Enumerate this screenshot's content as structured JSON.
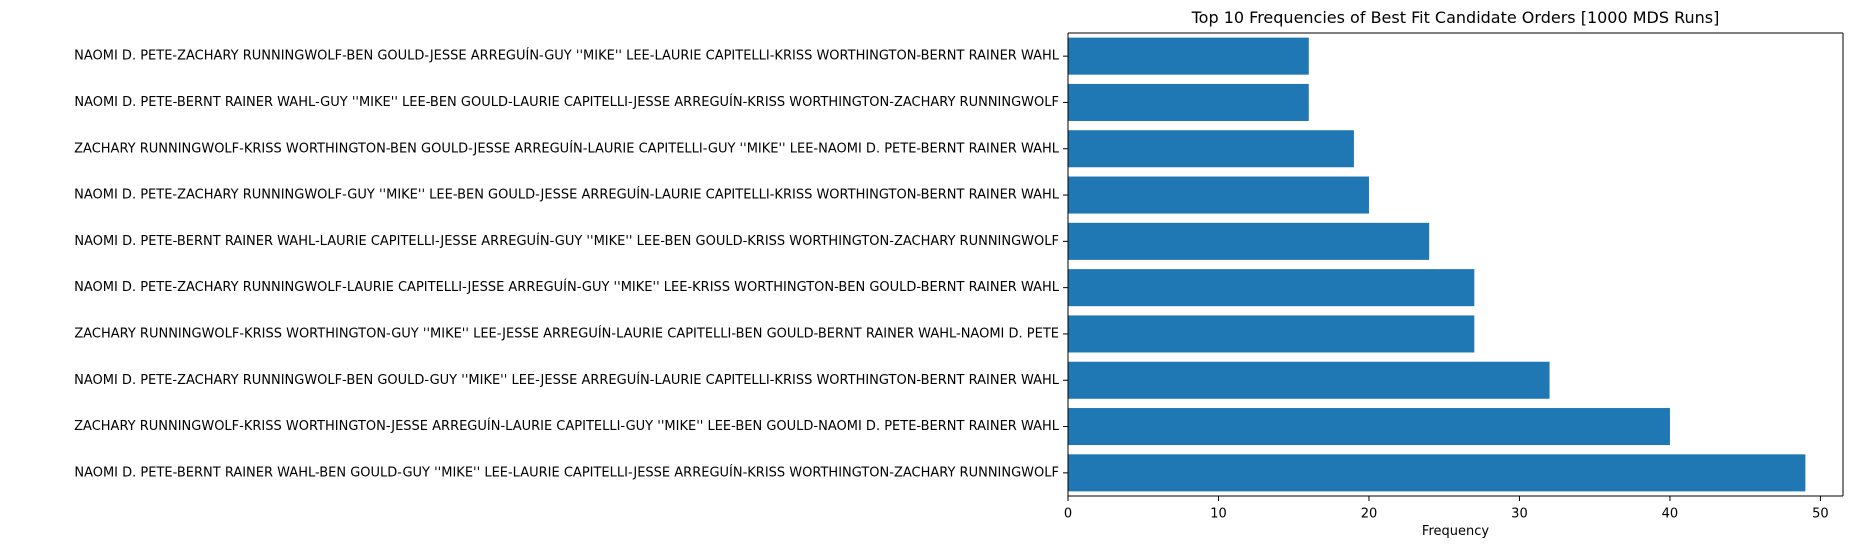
{
  "chart_data": {
    "type": "bar",
    "orientation": "horizontal",
    "title": "Top 10 Frequencies of Best Fit Candidate Orders [1000 MDS Runs]",
    "xlabel": "Frequency",
    "ylabel": "",
    "xlim": [
      0,
      51.5
    ],
    "x_ticks": [
      0,
      10,
      20,
      30,
      40,
      50
    ],
    "x_tick_labels": [
      "0",
      "10",
      "20",
      "30",
      "40",
      "50"
    ],
    "grid": false,
    "bar_color": "#1f77b4",
    "categories": [
      "NAOMI D. PETE-ZACHARY RUNNINGWOLF-BEN GOULD-JESSE ARREGUÍN-GUY ''MIKE'' LEE-LAURIE CAPITELLI-KRISS WORTHINGTON-BERNT RAINER WAHL",
      "NAOMI D. PETE-BERNT RAINER WAHL-GUY ''MIKE'' LEE-BEN GOULD-LAURIE CAPITELLI-JESSE ARREGUÍN-KRISS WORTHINGTON-ZACHARY RUNNINGWOLF",
      "ZACHARY RUNNINGWOLF-KRISS WORTHINGTON-BEN GOULD-JESSE ARREGUÍN-LAURIE CAPITELLI-GUY ''MIKE'' LEE-NAOMI D. PETE-BERNT RAINER WAHL",
      "NAOMI D. PETE-ZACHARY RUNNINGWOLF-GUY ''MIKE'' LEE-BEN GOULD-JESSE ARREGUÍN-LAURIE CAPITELLI-KRISS WORTHINGTON-BERNT RAINER WAHL",
      "NAOMI D. PETE-BERNT RAINER WAHL-LAURIE CAPITELLI-JESSE ARREGUÍN-GUY ''MIKE'' LEE-BEN GOULD-KRISS WORTHINGTON-ZACHARY RUNNINGWOLF",
      "NAOMI D. PETE-ZACHARY RUNNINGWOLF-LAURIE CAPITELLI-JESSE ARREGUÍN-GUY ''MIKE'' LEE-KRISS WORTHINGTON-BEN GOULD-BERNT RAINER WAHL",
      "ZACHARY RUNNINGWOLF-KRISS WORTHINGTON-GUY ''MIKE'' LEE-JESSE ARREGUÍN-LAURIE CAPITELLI-BEN GOULD-BERNT RAINER WAHL-NAOMI D. PETE",
      "NAOMI D. PETE-ZACHARY RUNNINGWOLF-BEN GOULD-GUY ''MIKE'' LEE-JESSE ARREGUÍN-LAURIE CAPITELLI-KRISS WORTHINGTON-BERNT RAINER WAHL",
      "ZACHARY RUNNINGWOLF-KRISS WORTHINGTON-JESSE ARREGUÍN-LAURIE CAPITELLI-GUY ''MIKE'' LEE-BEN GOULD-NAOMI D. PETE-BERNT RAINER WAHL",
      "NAOMI D. PETE-BERNT RAINER WAHL-BEN GOULD-GUY ''MIKE'' LEE-LAURIE CAPITELLI-JESSE ARREGUÍN-KRISS WORTHINGTON-ZACHARY RUNNINGWOLF"
    ],
    "values": [
      16,
      16,
      19,
      20,
      24,
      27,
      27,
      32,
      40,
      49
    ]
  }
}
